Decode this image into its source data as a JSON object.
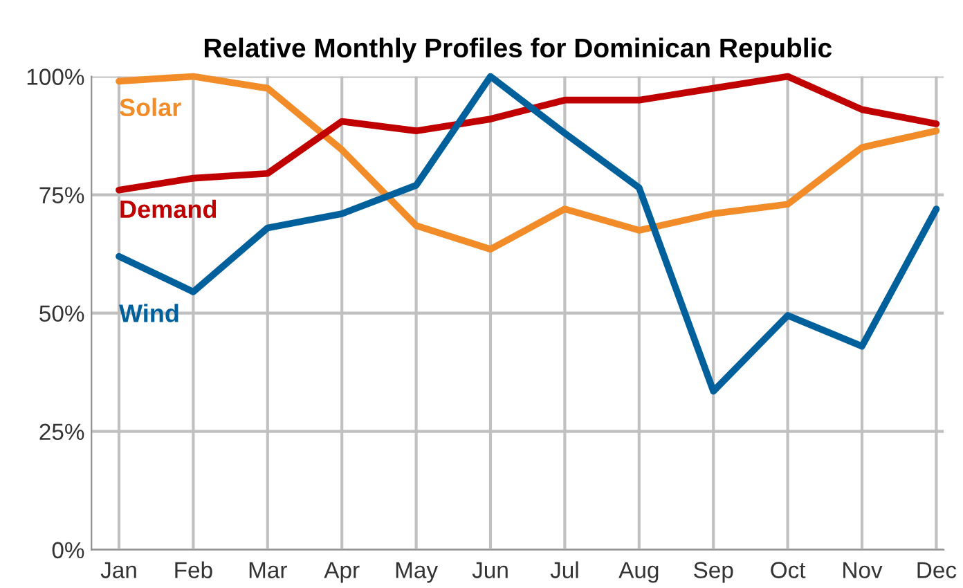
{
  "chart_data": {
    "type": "line",
    "title": "Relative Monthly Profiles for Dominican Republic",
    "categories": [
      "Jan",
      "Feb",
      "Mar",
      "Apr",
      "May",
      "Jun",
      "Jul",
      "Aug",
      "Sep",
      "Oct",
      "Nov",
      "Dec"
    ],
    "series": [
      {
        "name": "Solar",
        "color": "#f28c28",
        "values": [
          99,
          100,
          97.5,
          84.5,
          68.5,
          63.5,
          72,
          67.5,
          71,
          73,
          85,
          88.5
        ]
      },
      {
        "name": "Demand",
        "color": "#c00000",
        "values": [
          76,
          78.5,
          79.5,
          90.5,
          88.5,
          91,
          95,
          95,
          97.5,
          100,
          93,
          90
        ]
      },
      {
        "name": "Wind",
        "color": "#00609c",
        "values": [
          62,
          54.5,
          68,
          71,
          77,
          100,
          88,
          76.5,
          33.5,
          49.5,
          43,
          72
        ]
      }
    ],
    "ylim": [
      0,
      100
    ],
    "yticks": [
      {
        "value": 0,
        "label": "0%"
      },
      {
        "value": 25,
        "label": "25%"
      },
      {
        "value": 50,
        "label": "50%"
      },
      {
        "value": 75,
        "label": "75%"
      },
      {
        "value": 100,
        "label": "100%"
      }
    ],
    "grid": true,
    "legend": false,
    "marker": "none",
    "line_style": "solid"
  }
}
